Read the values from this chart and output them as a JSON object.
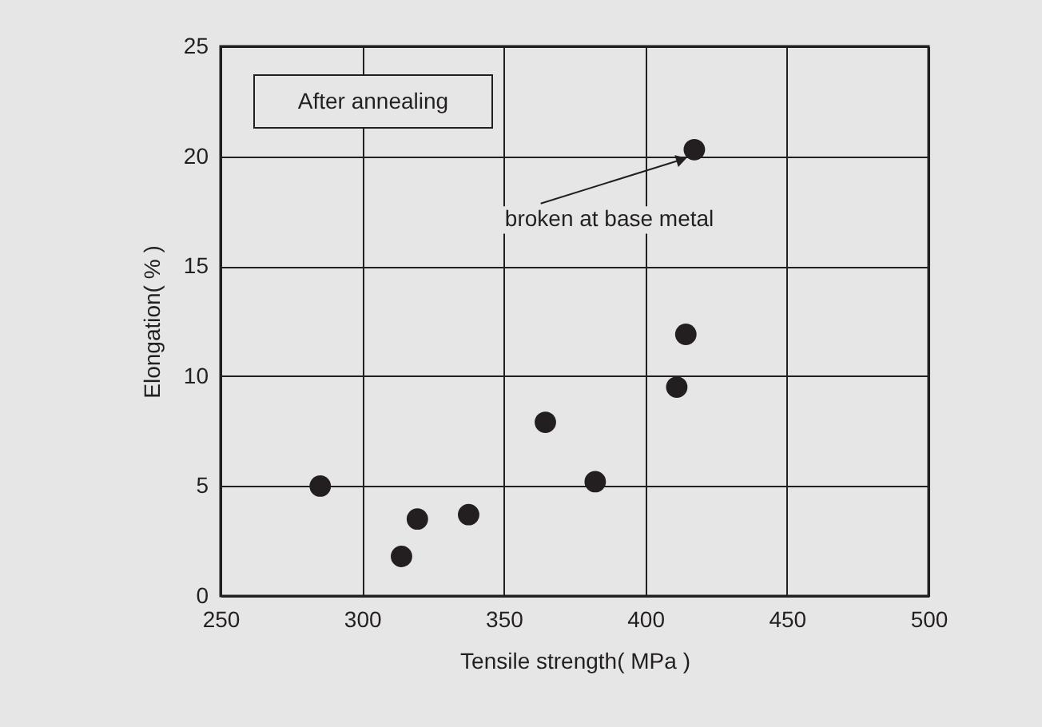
{
  "chart_data": {
    "type": "scatter",
    "xlabel": "Tensile strength( MPa )",
    "ylabel": "Elongation( % )",
    "x": [
      285.2,
      313.9,
      319.5,
      337.6,
      364.7,
      382.3,
      411.1,
      414.3,
      417.3
    ],
    "series": [
      {
        "color": "#231f20",
        "values": [
          5.0,
          1.8,
          3.5,
          3.7,
          7.9,
          5.2,
          9.5,
          11.9,
          20.3
        ]
      }
    ],
    "xlim": [
      250,
      500
    ],
    "xticks": [
      250,
      300,
      350,
      400,
      450,
      500
    ],
    "ylim": [
      0,
      25
    ],
    "yticks": [
      0,
      5,
      10,
      15,
      20,
      25
    ],
    "grid": true,
    "marker": "circle",
    "annotations": [
      "After annealing",
      {
        "text": "broken at base metal",
        "x": 417.3,
        "y": 20.3
      }
    ]
  }
}
